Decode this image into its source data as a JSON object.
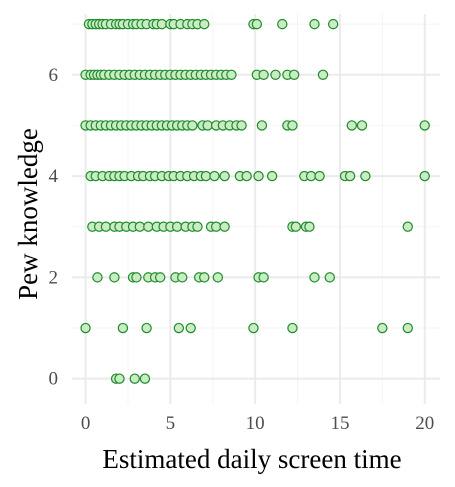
{
  "chart_data": {
    "type": "scatter",
    "title": "",
    "xlabel": "Estimated daily screen time",
    "ylabel": "Pew knowledge",
    "xlim": [
      -0.8,
      20.9
    ],
    "ylim": [
      -0.5,
      7.2
    ],
    "x_ticks": [
      0,
      5,
      10,
      15,
      20
    ],
    "y_ticks": [
      0,
      2,
      4,
      6
    ],
    "grid": true,
    "legend": "none",
    "marker": {
      "shape": "circle",
      "fill": "#c9ecc3",
      "stroke": "#1f8a2d"
    },
    "colors": {
      "background": "#ffffff",
      "grid_major": "#ebebeb",
      "grid_minor": "#f4f4f4"
    },
    "points": [
      {
        "x": 0.2,
        "y": 7
      },
      {
        "x": 0.4,
        "y": 7
      },
      {
        "x": 0.6,
        "y": 7
      },
      {
        "x": 0.8,
        "y": 7
      },
      {
        "x": 1.0,
        "y": 7
      },
      {
        "x": 1.2,
        "y": 7
      },
      {
        "x": 1.5,
        "y": 7
      },
      {
        "x": 1.8,
        "y": 7
      },
      {
        "x": 2.0,
        "y": 7
      },
      {
        "x": 2.2,
        "y": 7
      },
      {
        "x": 2.5,
        "y": 7
      },
      {
        "x": 2.8,
        "y": 7
      },
      {
        "x": 3.0,
        "y": 7
      },
      {
        "x": 3.3,
        "y": 7
      },
      {
        "x": 3.6,
        "y": 7
      },
      {
        "x": 4.0,
        "y": 7
      },
      {
        "x": 4.2,
        "y": 7
      },
      {
        "x": 4.5,
        "y": 7
      },
      {
        "x": 5.0,
        "y": 7
      },
      {
        "x": 5.2,
        "y": 7
      },
      {
        "x": 5.6,
        "y": 7
      },
      {
        "x": 6.0,
        "y": 7
      },
      {
        "x": 6.3,
        "y": 7
      },
      {
        "x": 6.6,
        "y": 7
      },
      {
        "x": 7.0,
        "y": 7
      },
      {
        "x": 9.9,
        "y": 7
      },
      {
        "x": 10.1,
        "y": 7
      },
      {
        "x": 11.6,
        "y": 7
      },
      {
        "x": 13.5,
        "y": 7
      },
      {
        "x": 14.6,
        "y": 7
      },
      {
        "x": 0.0,
        "y": 6
      },
      {
        "x": 0.3,
        "y": 6
      },
      {
        "x": 0.5,
        "y": 6
      },
      {
        "x": 0.7,
        "y": 6
      },
      {
        "x": 0.9,
        "y": 6
      },
      {
        "x": 1.1,
        "y": 6
      },
      {
        "x": 1.4,
        "y": 6
      },
      {
        "x": 1.7,
        "y": 6
      },
      {
        "x": 2.0,
        "y": 6
      },
      {
        "x": 2.3,
        "y": 6
      },
      {
        "x": 2.6,
        "y": 6
      },
      {
        "x": 2.9,
        "y": 6
      },
      {
        "x": 3.2,
        "y": 6
      },
      {
        "x": 3.5,
        "y": 6
      },
      {
        "x": 3.8,
        "y": 6
      },
      {
        "x": 4.1,
        "y": 6
      },
      {
        "x": 4.4,
        "y": 6
      },
      {
        "x": 4.7,
        "y": 6
      },
      {
        "x": 5.0,
        "y": 6
      },
      {
        "x": 5.3,
        "y": 6
      },
      {
        "x": 5.6,
        "y": 6
      },
      {
        "x": 5.9,
        "y": 6
      },
      {
        "x": 6.2,
        "y": 6
      },
      {
        "x": 6.5,
        "y": 6
      },
      {
        "x": 6.8,
        "y": 6
      },
      {
        "x": 7.1,
        "y": 6
      },
      {
        "x": 7.4,
        "y": 6
      },
      {
        "x": 7.7,
        "y": 6
      },
      {
        "x": 8.0,
        "y": 6
      },
      {
        "x": 8.3,
        "y": 6
      },
      {
        "x": 8.6,
        "y": 6
      },
      {
        "x": 10.1,
        "y": 6
      },
      {
        "x": 10.5,
        "y": 6
      },
      {
        "x": 11.2,
        "y": 6
      },
      {
        "x": 11.9,
        "y": 6
      },
      {
        "x": 12.3,
        "y": 6
      },
      {
        "x": 14.0,
        "y": 6
      },
      {
        "x": 0.0,
        "y": 5
      },
      {
        "x": 0.3,
        "y": 5
      },
      {
        "x": 0.6,
        "y": 5
      },
      {
        "x": 0.9,
        "y": 5
      },
      {
        "x": 1.2,
        "y": 5
      },
      {
        "x": 1.5,
        "y": 5
      },
      {
        "x": 1.8,
        "y": 5
      },
      {
        "x": 2.1,
        "y": 5
      },
      {
        "x": 2.4,
        "y": 5
      },
      {
        "x": 2.7,
        "y": 5
      },
      {
        "x": 3.0,
        "y": 5
      },
      {
        "x": 3.3,
        "y": 5
      },
      {
        "x": 3.6,
        "y": 5
      },
      {
        "x": 3.9,
        "y": 5
      },
      {
        "x": 4.2,
        "y": 5
      },
      {
        "x": 4.5,
        "y": 5
      },
      {
        "x": 4.8,
        "y": 5
      },
      {
        "x": 5.1,
        "y": 5
      },
      {
        "x": 5.4,
        "y": 5
      },
      {
        "x": 5.7,
        "y": 5
      },
      {
        "x": 6.0,
        "y": 5
      },
      {
        "x": 6.3,
        "y": 5
      },
      {
        "x": 6.9,
        "y": 5
      },
      {
        "x": 7.2,
        "y": 5
      },
      {
        "x": 7.7,
        "y": 5
      },
      {
        "x": 8.1,
        "y": 5
      },
      {
        "x": 8.5,
        "y": 5
      },
      {
        "x": 8.9,
        "y": 5
      },
      {
        "x": 9.2,
        "y": 5
      },
      {
        "x": 10.4,
        "y": 5
      },
      {
        "x": 11.9,
        "y": 5
      },
      {
        "x": 12.2,
        "y": 5
      },
      {
        "x": 15.7,
        "y": 5
      },
      {
        "x": 16.3,
        "y": 5
      },
      {
        "x": 20.0,
        "y": 5
      },
      {
        "x": 0.3,
        "y": 4
      },
      {
        "x": 0.6,
        "y": 4
      },
      {
        "x": 1.0,
        "y": 4
      },
      {
        "x": 1.4,
        "y": 4
      },
      {
        "x": 1.7,
        "y": 4
      },
      {
        "x": 2.0,
        "y": 4
      },
      {
        "x": 2.3,
        "y": 4
      },
      {
        "x": 2.7,
        "y": 4
      },
      {
        "x": 3.1,
        "y": 4
      },
      {
        "x": 3.4,
        "y": 4
      },
      {
        "x": 3.8,
        "y": 4
      },
      {
        "x": 4.1,
        "y": 4
      },
      {
        "x": 4.5,
        "y": 4
      },
      {
        "x": 4.9,
        "y": 4
      },
      {
        "x": 5.2,
        "y": 4
      },
      {
        "x": 5.6,
        "y": 4
      },
      {
        "x": 6.0,
        "y": 4
      },
      {
        "x": 6.4,
        "y": 4
      },
      {
        "x": 6.8,
        "y": 4
      },
      {
        "x": 7.1,
        "y": 4
      },
      {
        "x": 7.6,
        "y": 4
      },
      {
        "x": 8.2,
        "y": 4
      },
      {
        "x": 9.1,
        "y": 4
      },
      {
        "x": 9.5,
        "y": 4
      },
      {
        "x": 10.2,
        "y": 4
      },
      {
        "x": 11.0,
        "y": 4
      },
      {
        "x": 12.9,
        "y": 4
      },
      {
        "x": 13.3,
        "y": 4
      },
      {
        "x": 13.8,
        "y": 4
      },
      {
        "x": 15.3,
        "y": 4
      },
      {
        "x": 15.6,
        "y": 4
      },
      {
        "x": 16.5,
        "y": 4
      },
      {
        "x": 20.0,
        "y": 4
      },
      {
        "x": 0.4,
        "y": 3
      },
      {
        "x": 0.8,
        "y": 3
      },
      {
        "x": 1.2,
        "y": 3
      },
      {
        "x": 1.7,
        "y": 3
      },
      {
        "x": 2.0,
        "y": 3
      },
      {
        "x": 2.4,
        "y": 3
      },
      {
        "x": 2.8,
        "y": 3
      },
      {
        "x": 3.2,
        "y": 3
      },
      {
        "x": 3.7,
        "y": 3
      },
      {
        "x": 4.2,
        "y": 3
      },
      {
        "x": 4.6,
        "y": 3
      },
      {
        "x": 5.0,
        "y": 3
      },
      {
        "x": 5.4,
        "y": 3
      },
      {
        "x": 5.9,
        "y": 3
      },
      {
        "x": 6.3,
        "y": 3
      },
      {
        "x": 6.6,
        "y": 3
      },
      {
        "x": 7.4,
        "y": 3
      },
      {
        "x": 7.7,
        "y": 3
      },
      {
        "x": 8.2,
        "y": 3
      },
      {
        "x": 12.2,
        "y": 3
      },
      {
        "x": 12.4,
        "y": 3
      },
      {
        "x": 13.0,
        "y": 3
      },
      {
        "x": 13.2,
        "y": 3
      },
      {
        "x": 19.0,
        "y": 3
      },
      {
        "x": 0.7,
        "y": 2
      },
      {
        "x": 1.7,
        "y": 2
      },
      {
        "x": 2.8,
        "y": 2
      },
      {
        "x": 3.0,
        "y": 2
      },
      {
        "x": 3.7,
        "y": 2
      },
      {
        "x": 4.1,
        "y": 2
      },
      {
        "x": 4.4,
        "y": 2
      },
      {
        "x": 5.3,
        "y": 2
      },
      {
        "x": 5.7,
        "y": 2
      },
      {
        "x": 6.7,
        "y": 2
      },
      {
        "x": 7.0,
        "y": 2
      },
      {
        "x": 7.8,
        "y": 2
      },
      {
        "x": 10.2,
        "y": 2
      },
      {
        "x": 10.5,
        "y": 2
      },
      {
        "x": 13.5,
        "y": 2
      },
      {
        "x": 14.4,
        "y": 2
      },
      {
        "x": 0.0,
        "y": 1
      },
      {
        "x": 2.2,
        "y": 1
      },
      {
        "x": 3.6,
        "y": 1
      },
      {
        "x": 5.5,
        "y": 1
      },
      {
        "x": 6.2,
        "y": 1
      },
      {
        "x": 9.9,
        "y": 1
      },
      {
        "x": 12.2,
        "y": 1
      },
      {
        "x": 17.5,
        "y": 1
      },
      {
        "x": 19.0,
        "y": 1
      },
      {
        "x": 1.8,
        "y": 0
      },
      {
        "x": 2.0,
        "y": 0
      },
      {
        "x": 2.9,
        "y": 0
      },
      {
        "x": 3.5,
        "y": 0
      }
    ]
  }
}
